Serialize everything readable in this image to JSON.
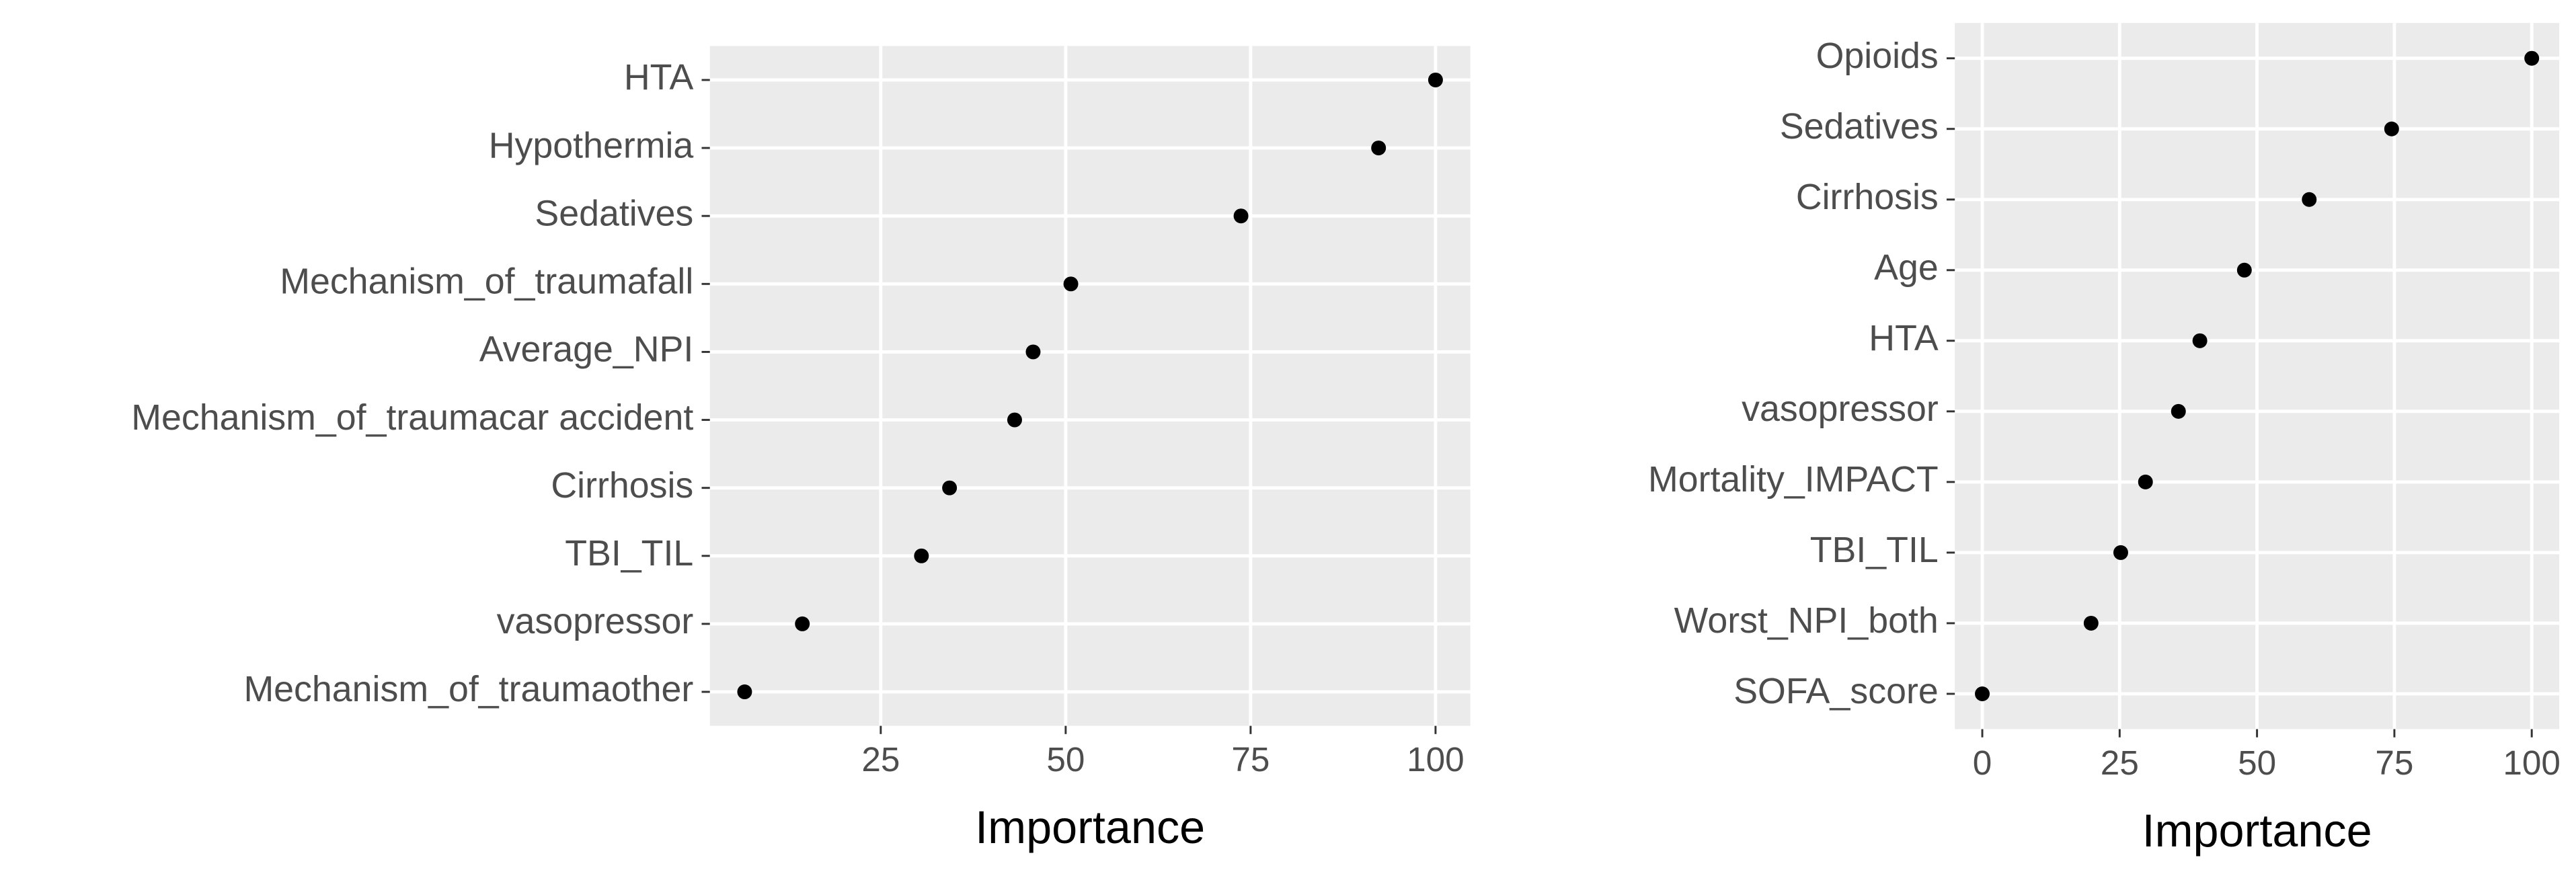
{
  "chart_data": [
    {
      "type": "dot",
      "x_label": "Importance",
      "categories": [
        "HTA",
        "Hypothermia",
        "Sedatives",
        "Mechanism_of_traumafall",
        "Average_NPI",
        "Mechanism_of_traumacar accident",
        "Cirrhosis",
        "TBI_TIL",
        "vasopressor",
        "Mechanism_of_traumaother"
      ],
      "values": [
        100,
        92.3,
        73.7,
        50.7,
        45.6,
        43.1,
        34.3,
        30.5,
        14.4,
        6.6
      ],
      "color": "#000000",
      "panel_color": "#ebebeb",
      "grid": true,
      "xlim": [
        1.9,
        104.7
      ],
      "xticks": [
        25,
        50,
        75,
        100
      ]
    },
    {
      "type": "dot",
      "x_label": "Importance",
      "categories": [
        "Opioids",
        "Sedatives",
        "Cirrhosis",
        "Age",
        "HTA",
        "vasopressor",
        "Mortality_IMPACT",
        "TBI_TIL",
        "Worst_NPI_both",
        "SOFA_score"
      ],
      "values": [
        100,
        74.5,
        59.5,
        47.7,
        39.6,
        35.7,
        29.7,
        25.2,
        19.8,
        0
      ],
      "color": "#000000",
      "panel_color": "#ebebeb",
      "grid": true,
      "xlim": [
        -5,
        105
      ],
      "xticks": [
        0,
        25,
        50,
        75,
        100
      ]
    }
  ]
}
